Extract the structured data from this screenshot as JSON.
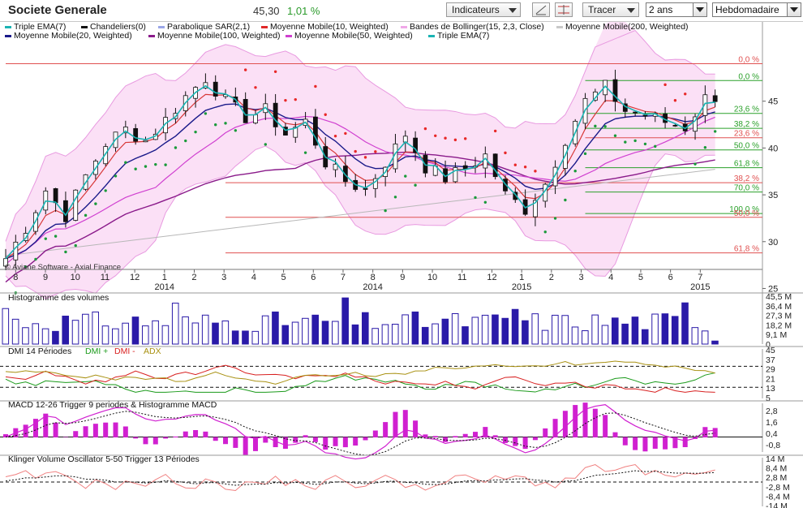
{
  "header": {
    "title": "Societe Generale",
    "price": "45,30",
    "change": "1,01 %",
    "indicators_button": "Indicateurs",
    "draw_button": "Tracer",
    "period_select": "2 ans",
    "interval_select": "Hebdomadaire"
  },
  "colors": {
    "up_candle": "#ffffff",
    "down_candle": "#111111",
    "ema": "#1ab3b3",
    "sar": "#e82828",
    "sar_support": "#1a9a3a",
    "ma10": "#d83838",
    "ma20": "#1a1a8a",
    "ma100": "#8a1a8a",
    "ma50": "#d040d0",
    "ma200": "#b8b8b8",
    "bollinger_fill": "#fbe0f6",
    "bollinger_line": "#e89ae0",
    "fib_red": "#e05050",
    "fib_green": "#2aa02a",
    "volume_bar": "#2a1aa8",
    "dmi_plus": "#1a9a1a",
    "dmi_minus": "#d82020",
    "adx": "#a89010",
    "macd": "#d020d0",
    "klinger": "#f08080"
  },
  "chart_data": [
    {
      "type": "candlestick",
      "panel": "price",
      "legend": [
        {
          "name": "Triple EMA(7)",
          "color": "#1ab3b3"
        },
        {
          "name": "Chandeliers(0)",
          "color": "#111111"
        },
        {
          "name": "Parabolique SAR(2,1)",
          "color": "#9aa6e8"
        },
        {
          "name": "Moyenne Mobile(10, Weighted)",
          "color": "#e02828"
        },
        {
          "name": "Bandes de Bollinger(15, 2,3, Close)",
          "color": "#f0a8e8"
        },
        {
          "name": "Moyenne Mobile(200, Weighted)",
          "color": "#c8c8c8"
        },
        {
          "name": "Moyenne Mobile(20, Weighted)",
          "color": "#1a1a8a"
        },
        {
          "name": "Moyenne Mobile(100, Weighted)",
          "color": "#8a1a8a"
        },
        {
          "name": "Moyenne Mobile(50, Weighted)",
          "color": "#d040d0"
        },
        {
          "name": "Triple EMA(7)",
          "color": "#1ab3b3"
        }
      ],
      "copyright": "© Aviane Software - Axial Finance",
      "y_ticks": [
        25,
        30,
        35,
        40,
        45
      ],
      "ylim": [
        24,
        50
      ],
      "x_tick_labels": [
        "8",
        "9",
        "10",
        "11",
        "12",
        "1",
        "2",
        "3",
        "4",
        "5",
        "6",
        "7",
        "8",
        "9",
        "10",
        "11",
        "12",
        "1",
        "2",
        "3",
        "4",
        "5",
        "6",
        "7"
      ],
      "x_year_labels": [
        {
          "label": "2014",
          "at": 5
        },
        {
          "label": "2014",
          "at": 12
        },
        {
          "label": "2015",
          "at": 17
        },
        {
          "label": "2015",
          "at": 23
        }
      ],
      "fibonacci": [
        {
          "label": "0,0 %",
          "value": 49.0,
          "color": "#e05050",
          "from_week": 0
        },
        {
          "label": "0,0 %",
          "value": 47.2,
          "color": "#2aa02a",
          "from_week": 58
        },
        {
          "label": "23,6 %",
          "value": 43.7,
          "color": "#2aa02a",
          "from_week": 58
        },
        {
          "label": "38,2 %",
          "value": 42.1,
          "color": "#2aa02a",
          "from_week": 58
        },
        {
          "label": "23,6 %",
          "value": 41.1,
          "color": "#e05050",
          "from_week": 58
        },
        {
          "label": "50,0 %",
          "value": 39.8,
          "color": "#2aa02a",
          "from_week": 58
        },
        {
          "label": "61,8 %",
          "value": 37.9,
          "color": "#2aa02a",
          "from_week": 58
        },
        {
          "label": "38,2 %",
          "value": 36.3,
          "color": "#e05050",
          "from_week": 22
        },
        {
          "label": "70,0 %",
          "value": 35.3,
          "color": "#2aa02a",
          "from_week": 58
        },
        {
          "label": "100,0 %",
          "value": 33.0,
          "color": "#2aa02a",
          "from_week": 58
        },
        {
          "label": "50,0 %",
          "value": 32.6,
          "color": "#e05050",
          "from_week": 22
        },
        {
          "label": "61,8 %",
          "value": 28.8,
          "color": "#e05050",
          "from_week": 22
        }
      ],
      "close_anchors": [
        [
          0,
          28.2
        ],
        [
          2,
          31.5
        ],
        [
          4,
          35.5
        ],
        [
          6,
          32.8
        ],
        [
          8,
          37.0
        ],
        [
          10,
          40.5
        ],
        [
          12,
          42.0
        ],
        [
          14,
          40.8
        ],
        [
          16,
          43.0
        ],
        [
          18,
          45.5
        ],
        [
          20,
          47.5
        ],
        [
          22,
          45.0
        ],
        [
          24,
          43.3
        ],
        [
          26,
          44.0
        ],
        [
          28,
          41.5
        ],
        [
          30,
          42.8
        ],
        [
          32,
          38.5
        ],
        [
          34,
          36.5
        ],
        [
          36,
          35.5
        ],
        [
          38,
          38.5
        ],
        [
          40,
          41.5
        ],
        [
          42,
          38.0
        ],
        [
          44,
          36.8
        ],
        [
          46,
          37.8
        ],
        [
          48,
          39.2
        ],
        [
          50,
          35.0
        ],
        [
          52,
          33.5
        ],
        [
          54,
          36.2
        ],
        [
          56,
          41.0
        ],
        [
          58,
          45.0
        ],
        [
          60,
          46.5
        ],
        [
          62,
          44.0
        ],
        [
          64,
          43.5
        ],
        [
          66,
          42.8
        ],
        [
          68,
          42.2
        ],
        [
          70,
          45.3
        ]
      ]
    },
    {
      "type": "bar",
      "panel": "volume",
      "title": "Histogramme des volumes",
      "y_ticks": [
        "45,5 M",
        "36,4 M",
        "27,3 M",
        "18,2 M",
        "9,1 M",
        "0"
      ],
      "ylim": [
        0,
        45.5
      ]
    },
    {
      "type": "line",
      "panel": "dmi",
      "title": "DMI 14 Périodes",
      "series_names": [
        "DMI +",
        "DMI -",
        "ADX"
      ],
      "y_ticks": [
        "45",
        "37",
        "29",
        "21",
        "13",
        "5"
      ],
      "ylim": [
        5,
        45
      ]
    },
    {
      "type": "line",
      "panel": "macd",
      "title": "MACD 12-26   Trigger 9 periodes & Histogramme MACD",
      "y_ticks": [
        "2,8",
        "1,6",
        "0,4",
        "-0,8"
      ],
      "ylim": [
        -1.6,
        3.6
      ]
    },
    {
      "type": "line",
      "panel": "klinger",
      "title": "Klinger Volume Oscillator 5-50   Trigger 13 Périodes",
      "y_ticks": [
        "14 M",
        "8,4 M",
        "2,8 M",
        "-2,8 M",
        "-8,4 M",
        "-14 M"
      ],
      "ylim": [
        -14,
        14
      ]
    }
  ]
}
